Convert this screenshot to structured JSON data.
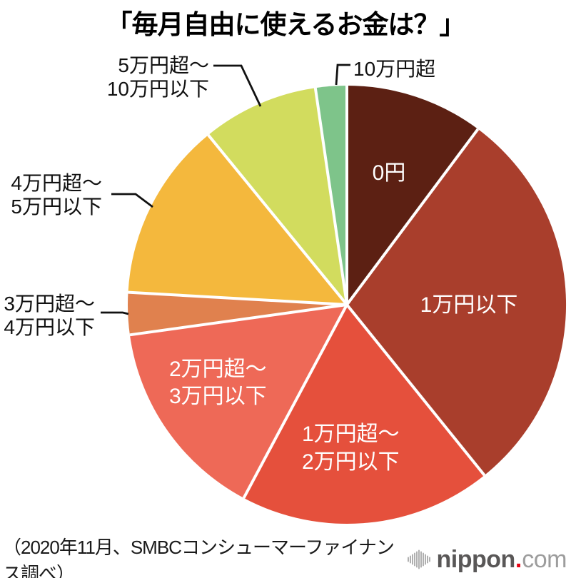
{
  "chart_data": {
    "type": "pie",
    "title": "「毎月自由に使えるお金は？」",
    "unit": "%",
    "direction": "clockwise",
    "start_angle_deg": 0,
    "slices": [
      {
        "label": "0円",
        "lines": [
          "0円"
        ],
        "value_pct": 10.2,
        "color": "#5c2013",
        "label_placement": "inside",
        "label_color": "#ffffff"
      },
      {
        "label": "1万円以下",
        "lines": [
          "1万円以下"
        ],
        "value_pct": 29.0,
        "color": "#a93e2c",
        "label_placement": "inside",
        "label_color": "#ffffff"
      },
      {
        "label": "1万円超〜2万円以下",
        "lines": [
          "1万円超〜",
          "2万円以下"
        ],
        "value_pct": 18.6,
        "color": "#e5503c",
        "label_placement": "inside",
        "label_color": "#ffffff"
      },
      {
        "label": "2万円超〜3万円以下",
        "lines": [
          "2万円超〜",
          "3万円以下"
        ],
        "value_pct": 15.0,
        "color": "#ee6957",
        "label_placement": "inside",
        "label_color": "#ffffff"
      },
      {
        "label": "3万円超〜4万円以下",
        "lines": [
          "3万円超〜",
          "4万円以下"
        ],
        "value_pct": 3.1,
        "color": "#e0814e",
        "label_placement": "outside",
        "label_color": "#111111"
      },
      {
        "label": "4万円超〜5万円以下",
        "lines": [
          "4万円超〜",
          "5万円以下"
        ],
        "value_pct": 13.2,
        "color": "#f4b83d",
        "label_placement": "outside",
        "label_color": "#111111"
      },
      {
        "label": "5万円超〜10万円以下",
        "lines": [
          "5万円超〜",
          "10万円以下"
        ],
        "value_pct": 8.6,
        "color": "#d2dc5e",
        "label_placement": "outside",
        "label_color": "#111111"
      },
      {
        "label": "10万円超",
        "lines": [
          "10万円超"
        ],
        "value_pct": 2.3,
        "color": "#7ec48a",
        "label_placement": "outside",
        "label_color": "#111111"
      }
    ],
    "divider_color": "#ffffff",
    "leader_line_color": "#111111"
  },
  "footer": {
    "source": "（2020年11月、SMBCコンシューマーファイナンス調べ）",
    "logo": {
      "icon": "soundwave-icon",
      "name": "nippon",
      "dot": ".",
      "tld": "com",
      "brand_color": "#595757",
      "dot_color": "#e60012",
      "tld_color": "#9d9d9d"
    }
  }
}
